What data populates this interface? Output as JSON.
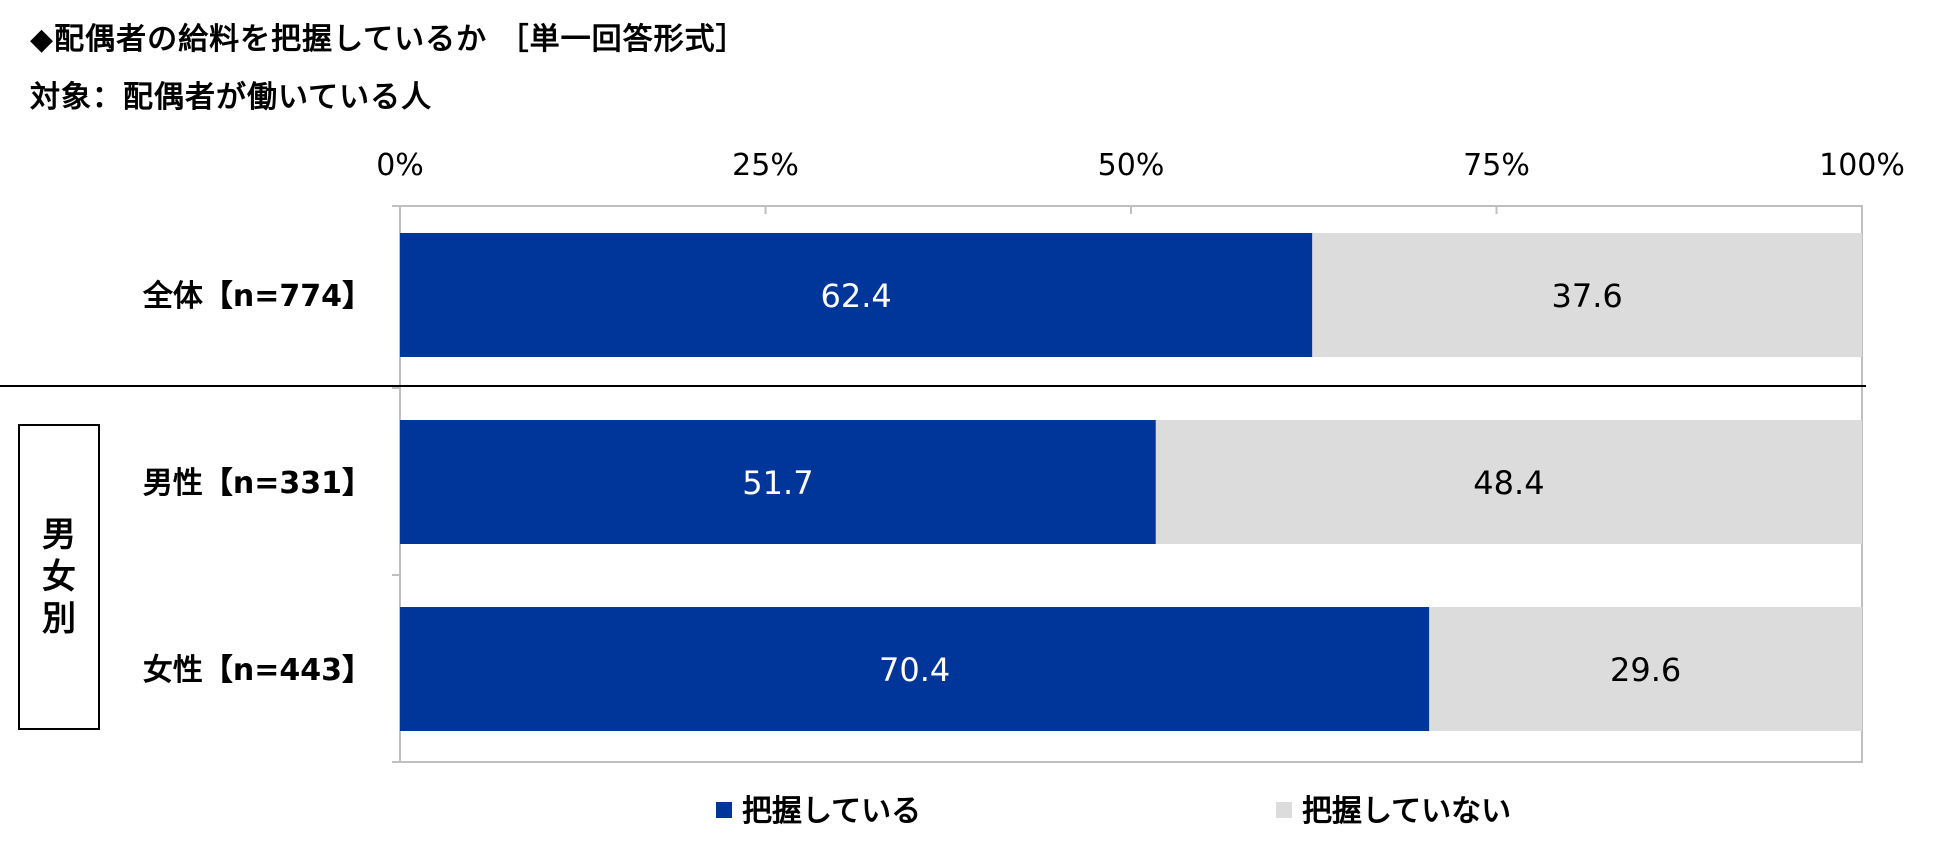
{
  "title": "◆配偶者の給料を把握しているか ［単一回答形式］",
  "subtitle": "対象：配偶者が働いている人",
  "group_label": "男女別",
  "colors": {
    "series1": "#00359a",
    "series2": "#dcdcdc",
    "axis": "#bfbfbf"
  },
  "chart_data": {
    "type": "bar",
    "orientation": "horizontal",
    "stacked": true,
    "categories": [
      "全体【n=774】",
      "男性【n=331】",
      "女性【n=443】"
    ],
    "series": [
      {
        "name": "把握している",
        "values": [
          62.4,
          51.7,
          70.4
        ]
      },
      {
        "name": "把握していない",
        "values": [
          37.6,
          48.4,
          29.6
        ]
      }
    ],
    "x_ticks": [
      "0%",
      "25%",
      "50%",
      "75%",
      "100%"
    ],
    "xlim": [
      0,
      100
    ],
    "legend": "bottom",
    "grid": false
  }
}
